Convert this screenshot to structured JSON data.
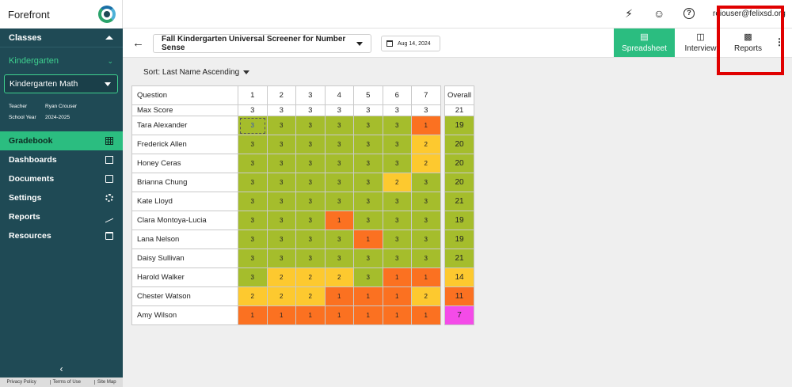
{
  "app": {
    "name": "Forefront"
  },
  "sidebar": {
    "classes_label": "Classes",
    "group_label": "Kindergarten",
    "selected_class": "Kindergarten Math",
    "teacher_key": "Teacher",
    "teacher_value": "Ryan Crouser",
    "year_key": "School Year",
    "year_value": "2024-2025",
    "nav": [
      {
        "label": "Gradebook",
        "icon": "grid-icon",
        "active": true
      },
      {
        "label": "Dashboards",
        "icon": "dashboard-icon"
      },
      {
        "label": "Documents",
        "icon": "document-icon"
      },
      {
        "label": "Settings",
        "icon": "gear-icon"
      },
      {
        "label": "Reports",
        "icon": "trend-icon"
      },
      {
        "label": "Resources",
        "icon": "folder-icon"
      }
    ],
    "collapse_glyph": "‹",
    "footer": [
      "Privacy Policy",
      "Terms of Use",
      "Site Map"
    ]
  },
  "topbar": {
    "user_email": "reiouser@felixsd.org",
    "icons": [
      "lightning-icon",
      "face-icon",
      "help-icon"
    ]
  },
  "toolbar": {
    "assessment": "Fall Kindergarten Universal Screener for Number Sense",
    "date": "Aug 14, 2024",
    "views": [
      {
        "label": "Spreadsheet",
        "icon": "spreadsheet-icon",
        "active": true
      },
      {
        "label": "Interview",
        "icon": "chat-icon"
      },
      {
        "label": "Reports",
        "icon": "bar-chart-icon"
      }
    ]
  },
  "sort": {
    "label": "Sort: Last Name Ascending"
  },
  "grid": {
    "question_label": "Question",
    "max_label": "Max Score",
    "overall_label": "Overall",
    "questions": [
      "1",
      "2",
      "3",
      "4",
      "5",
      "6",
      "7"
    ],
    "max_scores": [
      "3",
      "3",
      "3",
      "3",
      "3",
      "3",
      "3"
    ],
    "max_overall": "21",
    "students": [
      {
        "name": "Tara Alexander",
        "scores": [
          3,
          3,
          3,
          3,
          3,
          3,
          1
        ],
        "overall": 19
      },
      {
        "name": "Frederick Allen",
        "scores": [
          3,
          3,
          3,
          3,
          3,
          3,
          2
        ],
        "overall": 20
      },
      {
        "name": "Honey Ceras",
        "scores": [
          3,
          3,
          3,
          3,
          3,
          3,
          2
        ],
        "overall": 20
      },
      {
        "name": "Brianna Chung",
        "scores": [
          3,
          3,
          3,
          3,
          3,
          2,
          3
        ],
        "overall": 20
      },
      {
        "name": "Kate Lloyd",
        "scores": [
          3,
          3,
          3,
          3,
          3,
          3,
          3
        ],
        "overall": 21
      },
      {
        "name": "Clara Montoya-Lucia",
        "scores": [
          3,
          3,
          3,
          1,
          3,
          3,
          3
        ],
        "overall": 19
      },
      {
        "name": "Lana Nelson",
        "scores": [
          3,
          3,
          3,
          3,
          1,
          3,
          3
        ],
        "overall": 19
      },
      {
        "name": "Daisy Sullivan",
        "scores": [
          3,
          3,
          3,
          3,
          3,
          3,
          3
        ],
        "overall": 21
      },
      {
        "name": "Harold Walker",
        "scores": [
          3,
          2,
          2,
          2,
          3,
          1,
          1
        ],
        "overall": 14
      },
      {
        "name": "Chester Watson",
        "scores": [
          2,
          2,
          2,
          1,
          1,
          1,
          2
        ],
        "overall": 11
      },
      {
        "name": "Amy Wilson",
        "scores": [
          1,
          1,
          1,
          1,
          1,
          1,
          1
        ],
        "overall": 7
      }
    ]
  },
  "colors": {
    "score_3": "#a5bd2c",
    "score_2": "#fdc92f",
    "score_1": "#fb7121",
    "overall_low": "#f44be8",
    "accent": "#2bbd80",
    "highlight_box": "#e00000"
  }
}
